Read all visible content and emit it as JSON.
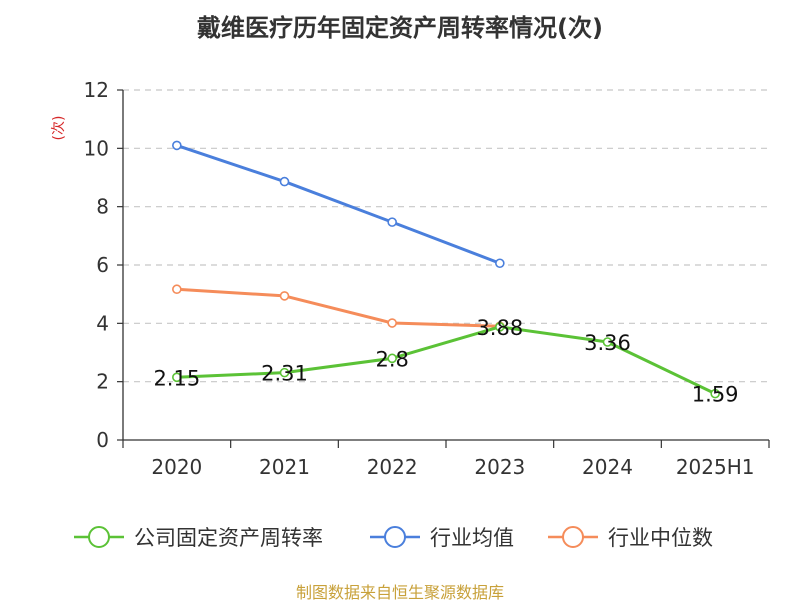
{
  "title": "戴维医疗历年固定资产周转率情况(次)",
  "source": "制图数据来自恒生聚源数据库",
  "chart_data": {
    "type": "line",
    "title": "戴维医疗历年固定资产周转率情况(次)",
    "ylabel": "(次)",
    "xlabel": "",
    "categories": [
      "2020",
      "2021",
      "2022",
      "2023",
      "2024",
      "2025H1"
    ],
    "ylim": [
      0,
      12
    ],
    "yticks": [
      0,
      2,
      4,
      6,
      8,
      10,
      12
    ],
    "grid": true,
    "legend_position": "bottom",
    "series": [
      {
        "name": "公司固定资产周转率",
        "color": "#5bc236",
        "values": [
          2.15,
          2.31,
          2.8,
          3.88,
          3.36,
          1.59
        ],
        "labels": [
          "2.15",
          "2.31",
          "2.8",
          "3.88",
          "3.36",
          "1.59"
        ]
      },
      {
        "name": "行业均值",
        "color": "#4a7fdc",
        "values": [
          10.1,
          8.86,
          7.47,
          6.06,
          null,
          null
        ]
      },
      {
        "name": "行业中位数",
        "color": "#f58c5a",
        "values": [
          5.17,
          4.94,
          4.01,
          3.9,
          null,
          null
        ]
      }
    ]
  }
}
